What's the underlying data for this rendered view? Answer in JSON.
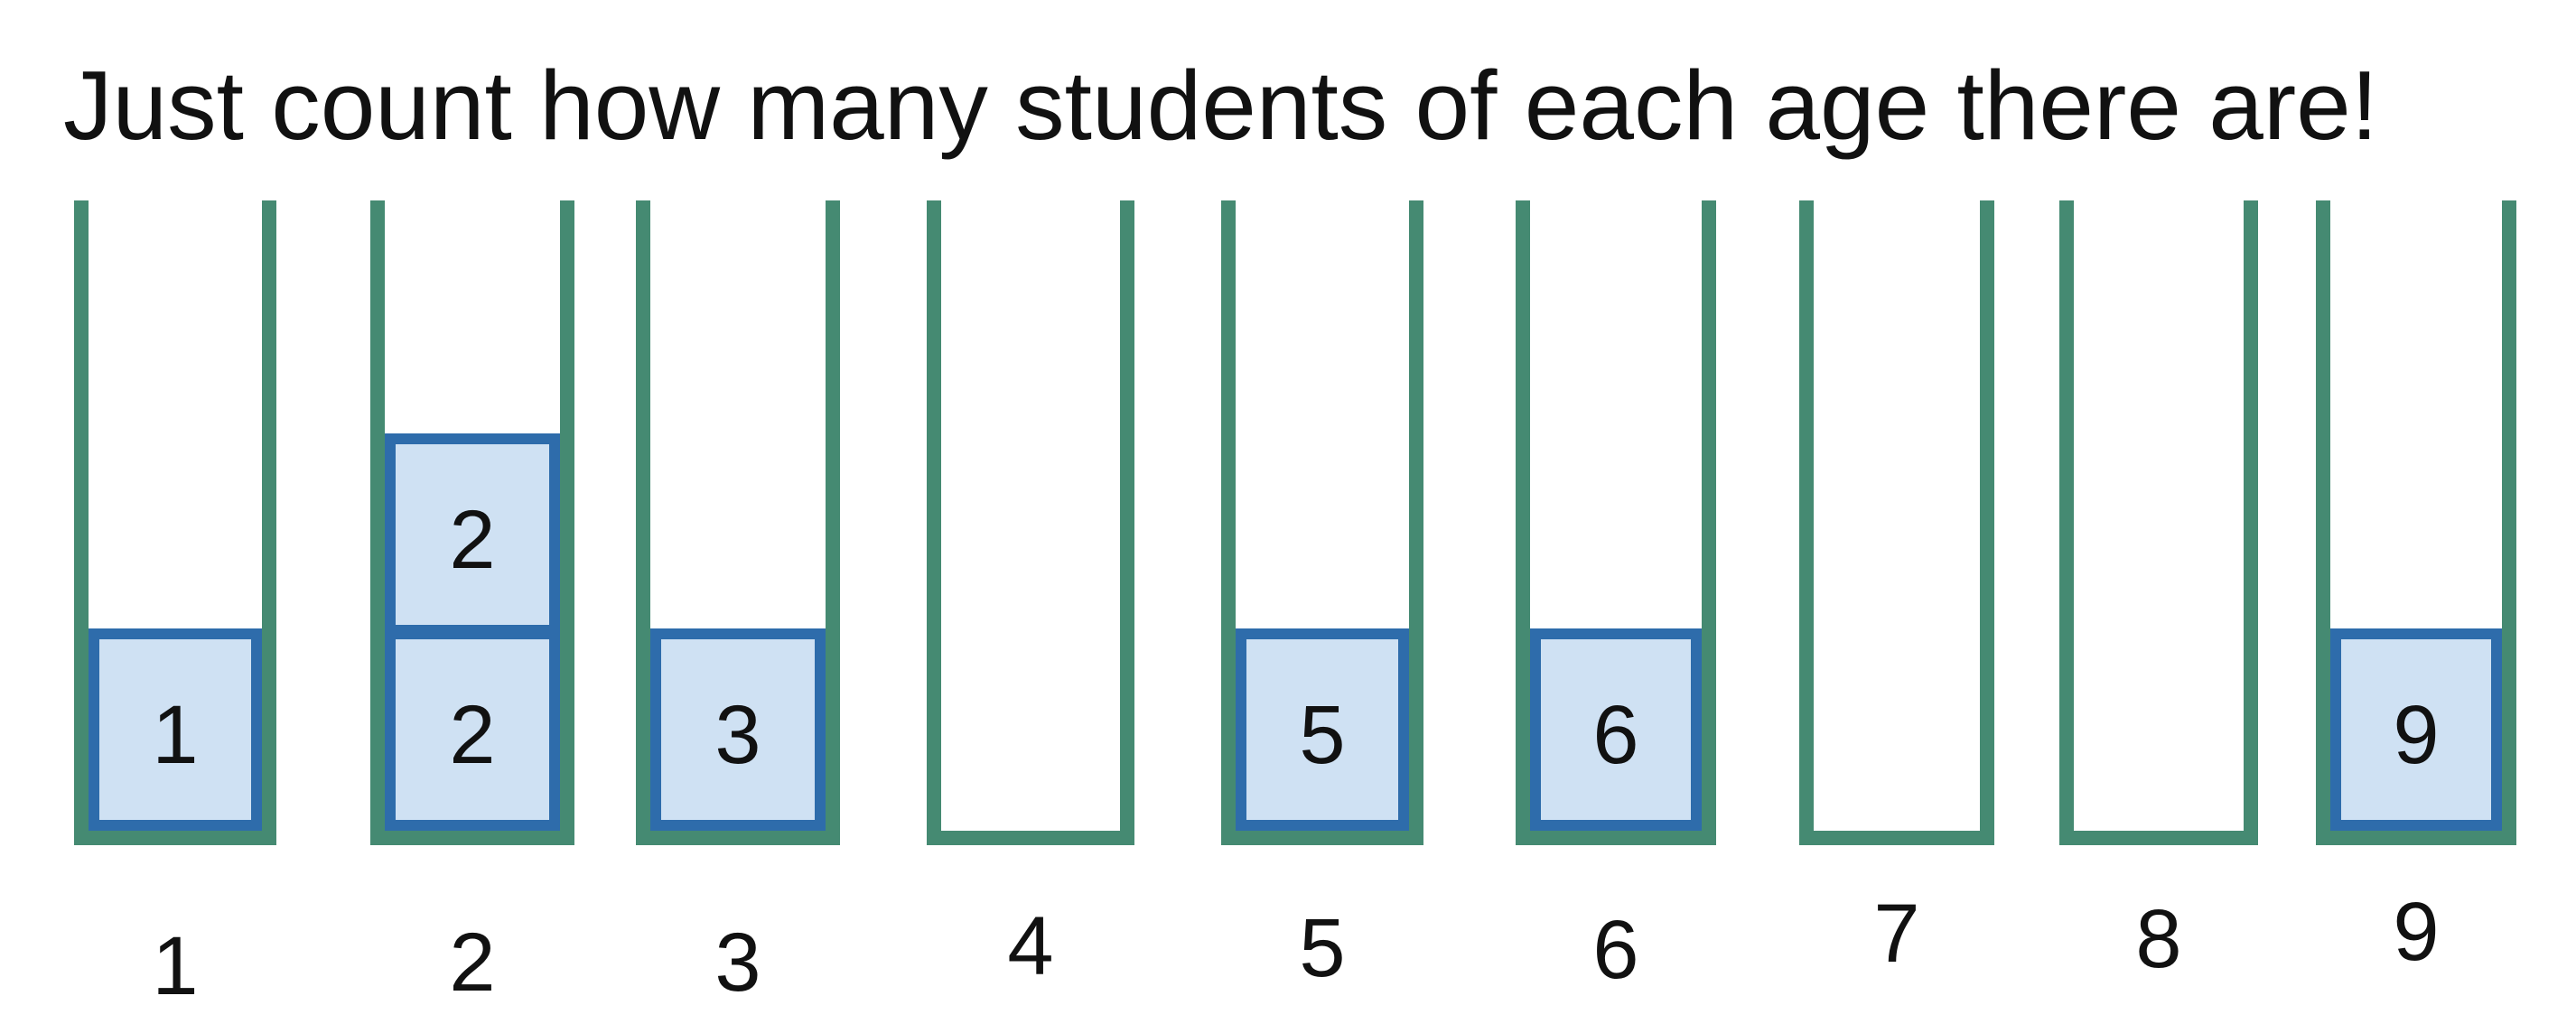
{
  "title": "Just count how many students of each age there are!",
  "colors": {
    "bucket": "#458a72",
    "box_fill": "#cfe1f3",
    "box_border": "#2e6cab",
    "text": "#111111"
  },
  "buckets": [
    {
      "age": "1",
      "students": [
        "1"
      ]
    },
    {
      "age": "2",
      "students": [
        "2",
        "2"
      ]
    },
    {
      "age": "3",
      "students": [
        "3"
      ]
    },
    {
      "age": "4",
      "students": []
    },
    {
      "age": "5",
      "students": [
        "5"
      ]
    },
    {
      "age": "6",
      "students": [
        "6"
      ]
    },
    {
      "age": "7",
      "students": []
    },
    {
      "age": "8",
      "students": []
    },
    {
      "age": "9",
      "students": [
        "9"
      ]
    }
  ]
}
